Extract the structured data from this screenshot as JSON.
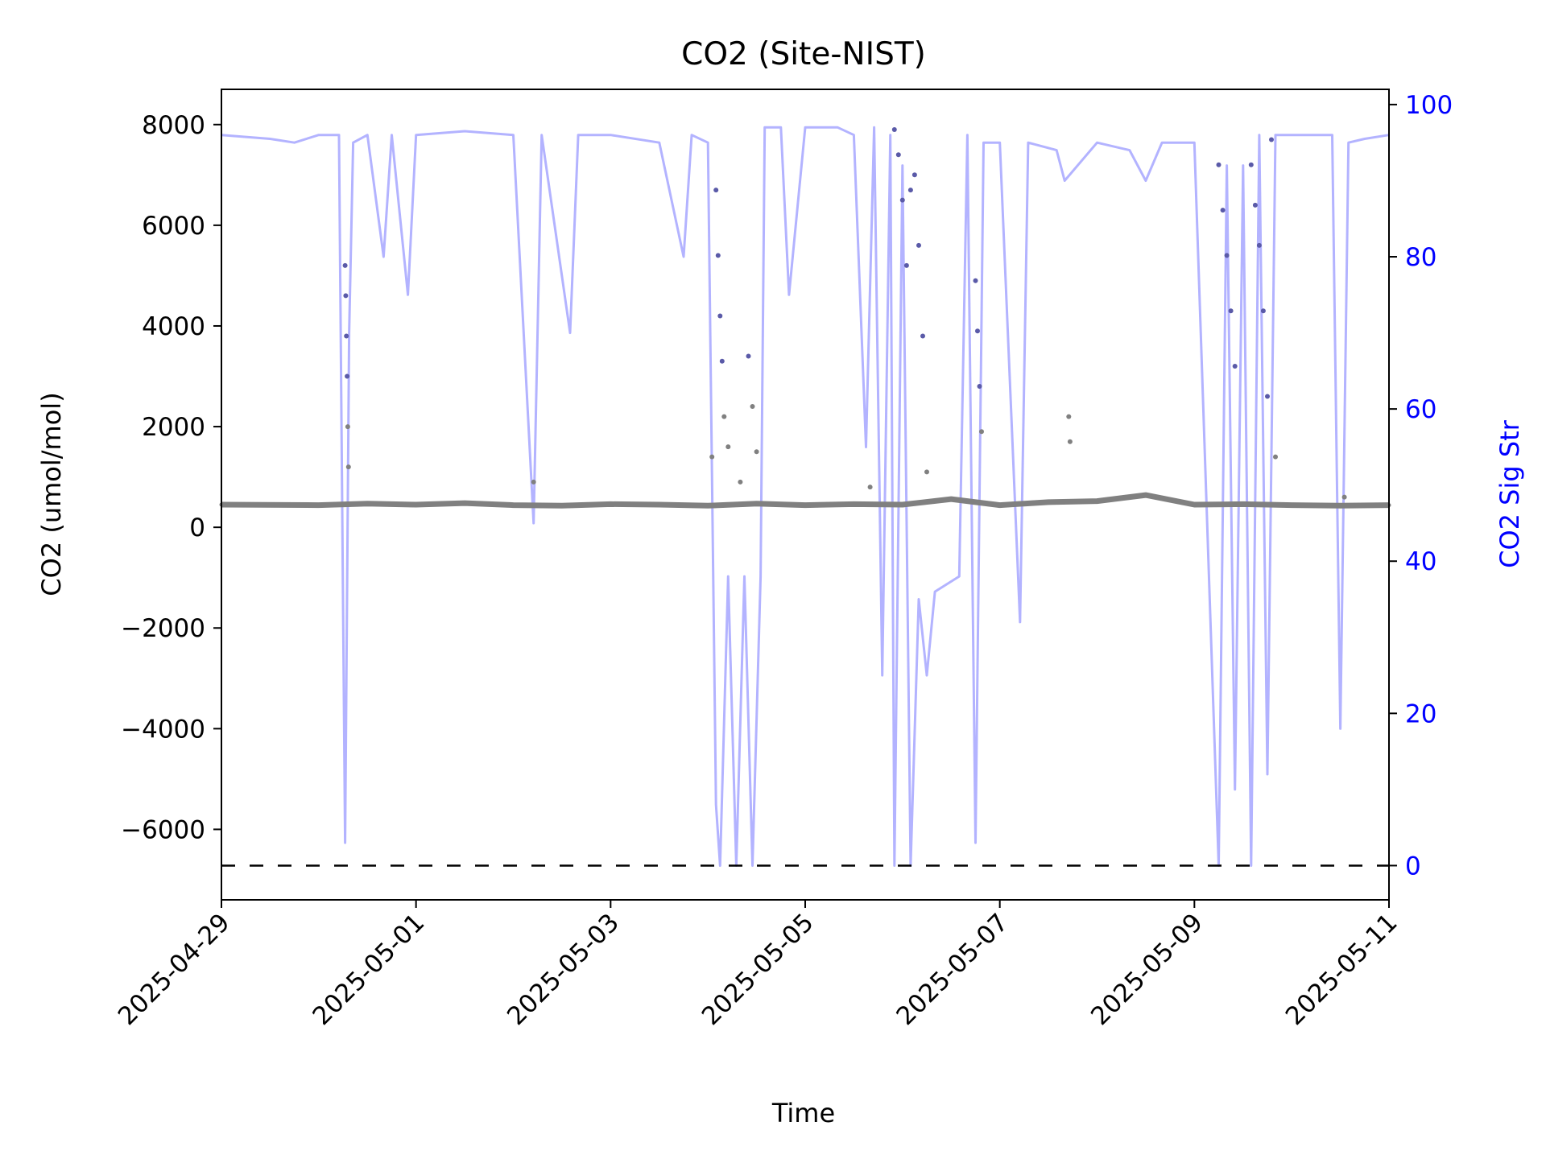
{
  "chart_data": {
    "type": "line",
    "title": "CO2 (Site-NIST)",
    "xlabel": "Time",
    "ylabel": "CO2 (umol/mol)",
    "y2label": "CO2 Sig Str",
    "x_tick_labels": [
      "2025-04-29",
      "2025-05-01",
      "2025-05-03",
      "2025-05-05",
      "2025-05-07",
      "2025-05-09",
      "2025-05-11"
    ],
    "xlim": [
      "2025-04-29",
      "2025-05-11"
    ],
    "ylim": [
      -7400,
      8700
    ],
    "y_ticks": [
      8000,
      6000,
      4000,
      2000,
      0,
      -2000,
      -4000,
      -6000
    ],
    "y_tick_labels": [
      "8000",
      "6000",
      "4000",
      "2000",
      "0",
      "−2000",
      "−4000",
      "−6000"
    ],
    "y2lim": [
      -4.5,
      102
    ],
    "y2_ticks": [
      100,
      80,
      60,
      40,
      20,
      0
    ],
    "y2_tick_labels": [
      "100",
      "80",
      "60",
      "40",
      "20",
      "0"
    ],
    "grid": false,
    "reference_line": {
      "axis": "y2",
      "value": 0,
      "style": "dashed",
      "color": "#000000"
    },
    "colors": {
      "co2": "#808080",
      "co2_spikes": "#5a5aa8",
      "sig_str": "#b3b3ff",
      "y2_axis": "#0000ff",
      "text": "#000000"
    },
    "series": [
      {
        "name": "CO2",
        "axis": "y",
        "style": "scatter",
        "color": "#808080",
        "baseline": [
          [
            "2025-04-29",
            450
          ],
          [
            "2025-04-30",
            440
          ],
          [
            "2025-04-30T12:00",
            470
          ],
          [
            "2025-05-01",
            450
          ],
          [
            "2025-05-01T12:00",
            480
          ],
          [
            "2025-05-02",
            440
          ],
          [
            "2025-05-02T12:00",
            430
          ],
          [
            "2025-05-03",
            460
          ],
          [
            "2025-05-03T12:00",
            450
          ],
          [
            "2025-05-04",
            430
          ],
          [
            "2025-05-04T12:00",
            470
          ],
          [
            "2025-05-05",
            440
          ],
          [
            "2025-05-05T12:00",
            460
          ],
          [
            "2025-05-06",
            450
          ],
          [
            "2025-05-06T12:00",
            560
          ],
          [
            "2025-05-07",
            440
          ],
          [
            "2025-05-07T12:00",
            500
          ],
          [
            "2025-05-08",
            520
          ],
          [
            "2025-05-08T12:00",
            640
          ],
          [
            "2025-05-09",
            450
          ],
          [
            "2025-05-09T12:00",
            460
          ],
          [
            "2025-05-10",
            440
          ],
          [
            "2025-05-10T12:00",
            430
          ],
          [
            "2025-05-11",
            440
          ]
        ],
        "spikes": [
          [
            "2025-04-30T06:30",
            5200
          ],
          [
            "2025-04-30T06:40",
            4600
          ],
          [
            "2025-04-30T06:50",
            3800
          ],
          [
            "2025-04-30T07:00",
            3000
          ],
          [
            "2025-04-30T07:10",
            2000
          ],
          [
            "2025-04-30T07:20",
            1200
          ],
          [
            "2025-05-02T05:00",
            900
          ],
          [
            "2025-05-04T01:00",
            1400
          ],
          [
            "2025-05-04T02:00",
            6700
          ],
          [
            "2025-05-04T02:30",
            5400
          ],
          [
            "2025-05-04T03:00",
            4200
          ],
          [
            "2025-05-04T03:30",
            3300
          ],
          [
            "2025-05-04T04:00",
            2200
          ],
          [
            "2025-05-04T05:00",
            1600
          ],
          [
            "2025-05-04T08:00",
            900
          ],
          [
            "2025-05-04T10:00",
            3400
          ],
          [
            "2025-05-04T11:00",
            2400
          ],
          [
            "2025-05-04T12:00",
            1500
          ],
          [
            "2025-05-05T16:00",
            800
          ],
          [
            "2025-05-05T22:00",
            7900
          ],
          [
            "2025-05-05T23:00",
            7400
          ],
          [
            "2025-05-06T00:00",
            6500
          ],
          [
            "2025-05-06T01:00",
            5200
          ],
          [
            "2025-05-06T02:00",
            6700
          ],
          [
            "2025-05-06T03:00",
            7000
          ],
          [
            "2025-05-06T04:00",
            5600
          ],
          [
            "2025-05-06T05:00",
            3800
          ],
          [
            "2025-05-06T06:00",
            1100
          ],
          [
            "2025-05-06T18:00",
            4900
          ],
          [
            "2025-05-06T18:30",
            3900
          ],
          [
            "2025-05-06T19:00",
            2800
          ],
          [
            "2025-05-06T19:30",
            1900
          ],
          [
            "2025-05-07T17:00",
            2200
          ],
          [
            "2025-05-07T17:20",
            1700
          ],
          [
            "2025-05-09T06:00",
            7200
          ],
          [
            "2025-05-09T07:00",
            6300
          ],
          [
            "2025-05-09T08:00",
            5400
          ],
          [
            "2025-05-09T09:00",
            4300
          ],
          [
            "2025-05-09T10:00",
            3200
          ],
          [
            "2025-05-09T14:00",
            7200
          ],
          [
            "2025-05-09T15:00",
            6400
          ],
          [
            "2025-05-09T16:00",
            5600
          ],
          [
            "2025-05-09T17:00",
            4300
          ],
          [
            "2025-05-09T18:00",
            2600
          ],
          [
            "2025-05-09T19:00",
            7700
          ],
          [
            "2025-05-09T20:00",
            1400
          ],
          [
            "2025-05-10T13:00",
            600
          ]
        ]
      },
      {
        "name": "CO2 Sig Str",
        "axis": "y2",
        "style": "line",
        "color": "#b3b3ff",
        "points": [
          [
            "2025-04-29",
            96
          ],
          [
            "2025-04-29T12:00",
            95.5
          ],
          [
            "2025-04-29T18:00",
            95
          ],
          [
            "2025-04-30",
            96
          ],
          [
            "2025-04-30T05:00",
            96
          ],
          [
            "2025-04-30T06:30",
            3
          ],
          [
            "2025-04-30T07:30",
            70
          ],
          [
            "2025-04-30T08:30",
            95
          ],
          [
            "2025-04-30T12:00",
            96
          ],
          [
            "2025-04-30T16:00",
            80
          ],
          [
            "2025-04-30T18:00",
            96
          ],
          [
            "2025-04-30T22:00",
            75
          ],
          [
            "2025-05-01",
            96
          ],
          [
            "2025-05-01T12:00",
            96.5
          ],
          [
            "2025-05-02",
            96
          ],
          [
            "2025-05-02T05:00",
            45
          ],
          [
            "2025-05-02T07:00",
            96
          ],
          [
            "2025-05-02T14:00",
            70
          ],
          [
            "2025-05-02T16:00",
            96
          ],
          [
            "2025-05-03",
            96
          ],
          [
            "2025-05-03T12:00",
            95
          ],
          [
            "2025-05-03T18:00",
            80
          ],
          [
            "2025-05-03T20:00",
            96
          ],
          [
            "2025-05-04",
            95
          ],
          [
            "2025-05-04T02:00",
            8
          ],
          [
            "2025-05-04T03:00",
            0
          ],
          [
            "2025-05-04T05:00",
            38
          ],
          [
            "2025-05-04T07:00",
            0
          ],
          [
            "2025-05-04T09:00",
            38
          ],
          [
            "2025-05-04T11:00",
            0
          ],
          [
            "2025-05-04T13:00",
            38
          ],
          [
            "2025-05-04T14:00",
            97
          ],
          [
            "2025-05-04T18:00",
            97
          ],
          [
            "2025-05-04T20:00",
            75
          ],
          [
            "2025-05-05",
            97
          ],
          [
            "2025-05-05T08:00",
            97
          ],
          [
            "2025-05-05T12:00",
            96
          ],
          [
            "2025-05-05T15:00",
            55
          ],
          [
            "2025-05-05T17:00",
            97
          ],
          [
            "2025-05-05T19:00",
            25
          ],
          [
            "2025-05-05T21:00",
            96
          ],
          [
            "2025-05-05T22:00",
            0
          ],
          [
            "2025-05-06T00:00",
            92
          ],
          [
            "2025-05-06T02:00",
            0
          ],
          [
            "2025-05-06T04:00",
            35
          ],
          [
            "2025-05-06T06:00",
            25
          ],
          [
            "2025-05-06T08:00",
            36
          ],
          [
            "2025-05-06T14:00",
            38
          ],
          [
            "2025-05-06T16:00",
            96
          ],
          [
            "2025-05-06T18:00",
            3
          ],
          [
            "2025-05-06T20:00",
            95
          ],
          [
            "2025-05-07",
            95
          ],
          [
            "2025-05-07T05:00",
            32
          ],
          [
            "2025-05-07T07:00",
            95
          ],
          [
            "2025-05-07T14:00",
            94
          ],
          [
            "2025-05-07T16:00",
            90
          ],
          [
            "2025-05-08",
            95
          ],
          [
            "2025-05-08T08:00",
            94
          ],
          [
            "2025-05-08T12:00",
            90
          ],
          [
            "2025-05-08T16:00",
            95
          ],
          [
            "2025-05-09",
            95
          ],
          [
            "2025-05-09T06:00",
            0
          ],
          [
            "2025-05-09T08:00",
            92
          ],
          [
            "2025-05-09T10:00",
            10
          ],
          [
            "2025-05-09T12:00",
            92
          ],
          [
            "2025-05-09T14:00",
            0
          ],
          [
            "2025-05-09T16:00",
            96
          ],
          [
            "2025-05-09T18:00",
            12
          ],
          [
            "2025-05-09T20:00",
            96
          ],
          [
            "2025-05-10",
            96
          ],
          [
            "2025-05-10T10:00",
            96
          ],
          [
            "2025-05-10T12:00",
            18
          ],
          [
            "2025-05-10T14:00",
            95
          ],
          [
            "2025-05-10T18:00",
            95.5
          ],
          [
            "2025-05-11",
            96
          ]
        ]
      }
    ]
  }
}
